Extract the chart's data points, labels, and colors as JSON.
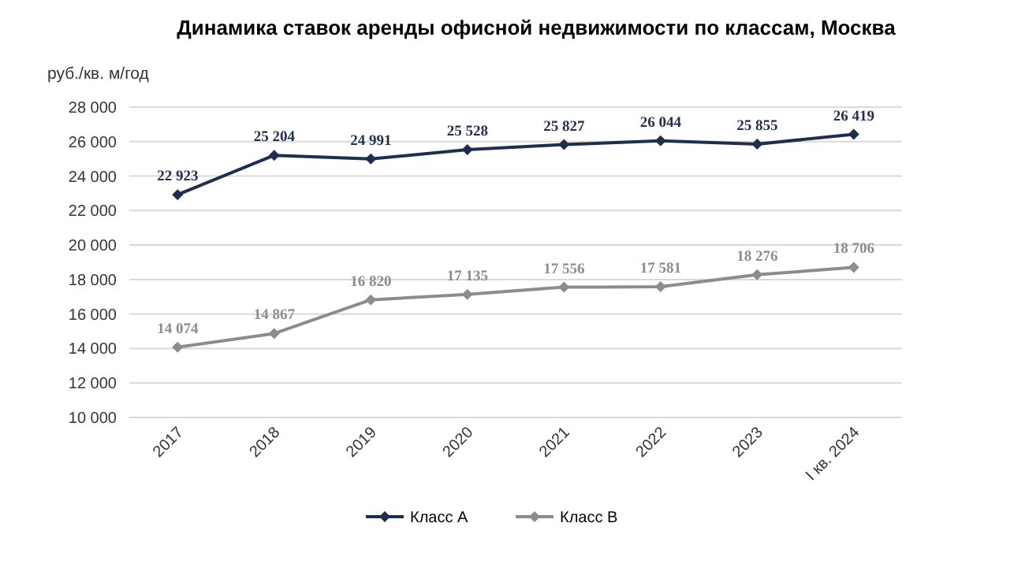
{
  "chart_data": {
    "type": "line",
    "title": "Динамика ставок аренды офисной недвижимости по классам, Москва",
    "ylabel": "руб./кв. м/год",
    "categories": [
      "2017",
      "2018",
      "2019",
      "2020",
      "2021",
      "2022",
      "2023",
      "I кв. 2024"
    ],
    "series": [
      {
        "name": "Класс А",
        "color": "#1f2d4e",
        "values": [
          22923,
          25204,
          24991,
          25528,
          25827,
          26044,
          25855,
          26419
        ],
        "value_labels": [
          "22 923",
          "25 204",
          "24 991",
          "25 528",
          "25 827",
          "26 044",
          "25 855",
          "26 419"
        ]
      },
      {
        "name": "Класс В",
        "color": "#8c8c8c",
        "values": [
          14074,
          14867,
          16820,
          17135,
          17556,
          17581,
          18276,
          18706
        ],
        "value_labels": [
          "14 074",
          "14 867",
          "16 820",
          "17 135",
          "17 556",
          "17 581",
          "18 276",
          "18 706"
        ]
      }
    ],
    "ylim": [
      10000,
      28000
    ],
    "yticks": [
      {
        "value": 10000,
        "label": "10 000"
      },
      {
        "value": 12000,
        "label": "12 000"
      },
      {
        "value": 14000,
        "label": "14 000"
      },
      {
        "value": 16000,
        "label": "16 000"
      },
      {
        "value": 18000,
        "label": "18 000"
      },
      {
        "value": 20000,
        "label": "20 000"
      },
      {
        "value": 22000,
        "label": "22 000"
      },
      {
        "value": 24000,
        "label": "24 000"
      },
      {
        "value": 26000,
        "label": "26 000"
      },
      {
        "value": 28000,
        "label": "28 000"
      }
    ],
    "grid": "y",
    "legend": "bottom",
    "marker": "diamond",
    "line_style": "solid"
  }
}
